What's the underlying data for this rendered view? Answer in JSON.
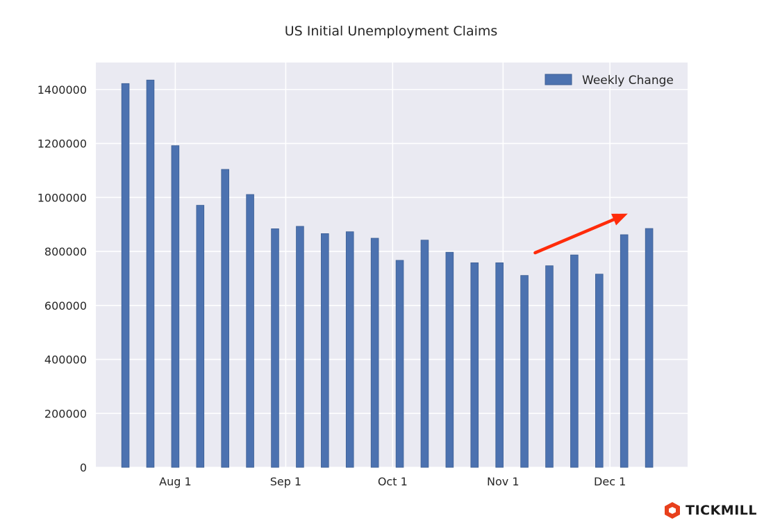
{
  "chart_data": {
    "type": "bar",
    "title": "US Initial Unemployment Claims",
    "xlabel": "",
    "ylabel": "",
    "x": [
      "2020-07-18",
      "2020-07-25",
      "2020-08-01",
      "2020-08-08",
      "2020-08-15",
      "2020-08-22",
      "2020-08-29",
      "2020-09-05",
      "2020-09-12",
      "2020-09-19",
      "2020-09-26",
      "2020-10-03",
      "2020-10-10",
      "2020-10-17",
      "2020-10-24",
      "2020-10-31",
      "2020-11-07",
      "2020-11-14",
      "2020-11-21",
      "2020-11-28",
      "2020-12-05",
      "2020-12-12"
    ],
    "series": [
      {
        "name": "Weekly Change",
        "values": [
          1422000,
          1435000,
          1192000,
          971000,
          1104000,
          1011000,
          884000,
          893000,
          866000,
          873000,
          849000,
          767000,
          842000,
          797000,
          758000,
          758000,
          711000,
          747000,
          787000,
          716000,
          862000,
          885000
        ]
      }
    ],
    "x_ticks": [
      "2020-08-01",
      "2020-09-01",
      "2020-10-01",
      "2020-11-01",
      "2020-12-01"
    ],
    "x_tick_labels": [
      "Aug 1",
      "Sep 1",
      "Oct 1",
      "Nov 1",
      "Dec 1"
    ],
    "ylim": [
      0,
      1500000
    ],
    "y_ticks": [
      0,
      200000,
      400000,
      600000,
      800000,
      1000000,
      1200000,
      1400000
    ],
    "y_tick_labels": [
      "0",
      "200000",
      "400000",
      "600000",
      "800000",
      "1000000",
      "1200000",
      "1400000"
    ],
    "grid": true,
    "legend_position": "top-right",
    "colors": {
      "bar": "#4c72b0",
      "background": "#eaeaf2",
      "grid": "#ffffff",
      "arrow": "#ff2b0a"
    },
    "annotations": [
      {
        "type": "arrow",
        "from": {
          "x": "2020-11-10",
          "y": 795000
        },
        "to": {
          "x": "2020-12-06",
          "y": 940000
        }
      }
    ]
  },
  "brand": {
    "name": "TICKMILL",
    "icon": "tickmill-logo-icon",
    "color": "#e8401c"
  }
}
